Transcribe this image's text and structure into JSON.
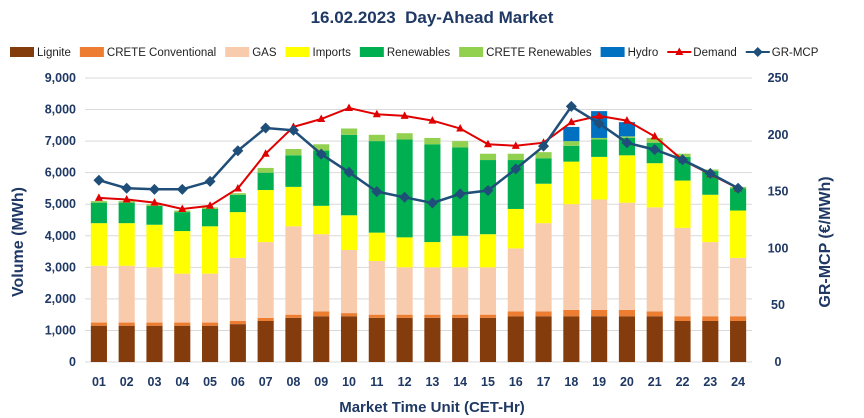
{
  "chart_data": {
    "type": "bar",
    "stacked": true,
    "title": "16.02.2023  Day-Ahead Market",
    "xlabel": "Market Time Unit (CET-Hr)",
    "ylabel": "Volume (MWh)",
    "y2label": "GR-MCP (€/MWh)",
    "ylim": [
      0,
      9000
    ],
    "y2lim": [
      0,
      250
    ],
    "yticks": [
      0,
      1000,
      2000,
      3000,
      4000,
      5000,
      6000,
      7000,
      8000,
      9000
    ],
    "ytick_labels": [
      "0",
      "1,000",
      "2,000",
      "3,000",
      "4,000",
      "5,000",
      "6,000",
      "7,000",
      "8,000",
      "9,000"
    ],
    "y2ticks": [
      0,
      50,
      100,
      150,
      200,
      250
    ],
    "ytick2_labels": [
      "0",
      "50",
      "100",
      "150",
      "200",
      "250"
    ],
    "grid": "horizontal",
    "legend_position": "top",
    "categories": [
      "01",
      "02",
      "03",
      "04",
      "05",
      "06",
      "07",
      "08",
      "09",
      "10",
      "11",
      "12",
      "13",
      "14",
      "15",
      "16",
      "17",
      "18",
      "19",
      "20",
      "21",
      "22",
      "23",
      "24"
    ],
    "series": [
      {
        "name": "Lignite",
        "kind": "bar",
        "color": "#843c0c",
        "values": [
          1150,
          1150,
          1150,
          1150,
          1150,
          1200,
          1300,
          1400,
          1450,
          1450,
          1400,
          1400,
          1400,
          1400,
          1400,
          1450,
          1450,
          1450,
          1450,
          1450,
          1450,
          1300,
          1300,
          1300
        ]
      },
      {
        "name": "CRETE Conventional",
        "kind": "bar",
        "color": "#ed7d31",
        "values": [
          100,
          100,
          100,
          100,
          100,
          100,
          100,
          100,
          150,
          100,
          100,
          100,
          100,
          100,
          100,
          150,
          150,
          200,
          200,
          200,
          150,
          150,
          150,
          150
        ]
      },
      {
        "name": "GAS",
        "kind": "bar",
        "color": "#f8cbad",
        "values": [
          1800,
          1800,
          1750,
          1550,
          1550,
          2000,
          2400,
          2800,
          2450,
          2000,
          1700,
          1500,
          1500,
          1500,
          1500,
          2000,
          2800,
          3350,
          3500,
          3400,
          3300,
          2800,
          2350,
          1850
        ]
      },
      {
        "name": "Imports",
        "kind": "bar",
        "color": "#ffff00",
        "values": [
          1350,
          1350,
          1350,
          1350,
          1500,
          1450,
          1650,
          1250,
          900,
          1100,
          900,
          950,
          800,
          1000,
          1050,
          1250,
          1250,
          1350,
          1350,
          1500,
          1400,
          1500,
          1500,
          1500
        ]
      },
      {
        "name": "Renewables",
        "kind": "bar",
        "color": "#00b050",
        "values": [
          650,
          650,
          600,
          600,
          550,
          550,
          550,
          1000,
          1750,
          2550,
          2900,
          3100,
          3100,
          2800,
          2350,
          1550,
          800,
          500,
          550,
          550,
          650,
          750,
          750,
          700
        ]
      },
      {
        "name": "CRETE Renewables",
        "kind": "bar",
        "color": "#92d050",
        "values": [
          50,
          50,
          50,
          50,
          50,
          50,
          150,
          200,
          200,
          200,
          200,
          200,
          200,
          200,
          200,
          200,
          200,
          150,
          50,
          50,
          150,
          100,
          50,
          50
        ]
      },
      {
        "name": "Hydro",
        "kind": "bar",
        "color": "#0070c0",
        "values": [
          0,
          0,
          0,
          0,
          0,
          0,
          0,
          0,
          0,
          0,
          0,
          0,
          0,
          0,
          0,
          0,
          0,
          450,
          850,
          450,
          0,
          0,
          0,
          0
        ]
      },
      {
        "name": "Demand",
        "kind": "line",
        "axis": "left",
        "color": "#e00000",
        "marker": "triangle",
        "values": [
          5200,
          5150,
          5050,
          4850,
          4950,
          5500,
          6600,
          7450,
          7700,
          8050,
          7850,
          7800,
          7650,
          7400,
          6900,
          6850,
          6950,
          7600,
          7800,
          7650,
          7150,
          6400,
          5950,
          5500
        ]
      },
      {
        "name": "GR-MCP",
        "kind": "line",
        "axis": "right",
        "color": "#1f4e79",
        "marker": "diamond",
        "values": [
          160,
          153,
          152,
          152,
          159,
          186,
          206,
          204,
          183,
          167,
          150,
          145,
          140,
          148,
          151,
          170,
          190,
          225,
          210,
          193,
          187,
          178,
          166,
          153
        ]
      }
    ]
  }
}
